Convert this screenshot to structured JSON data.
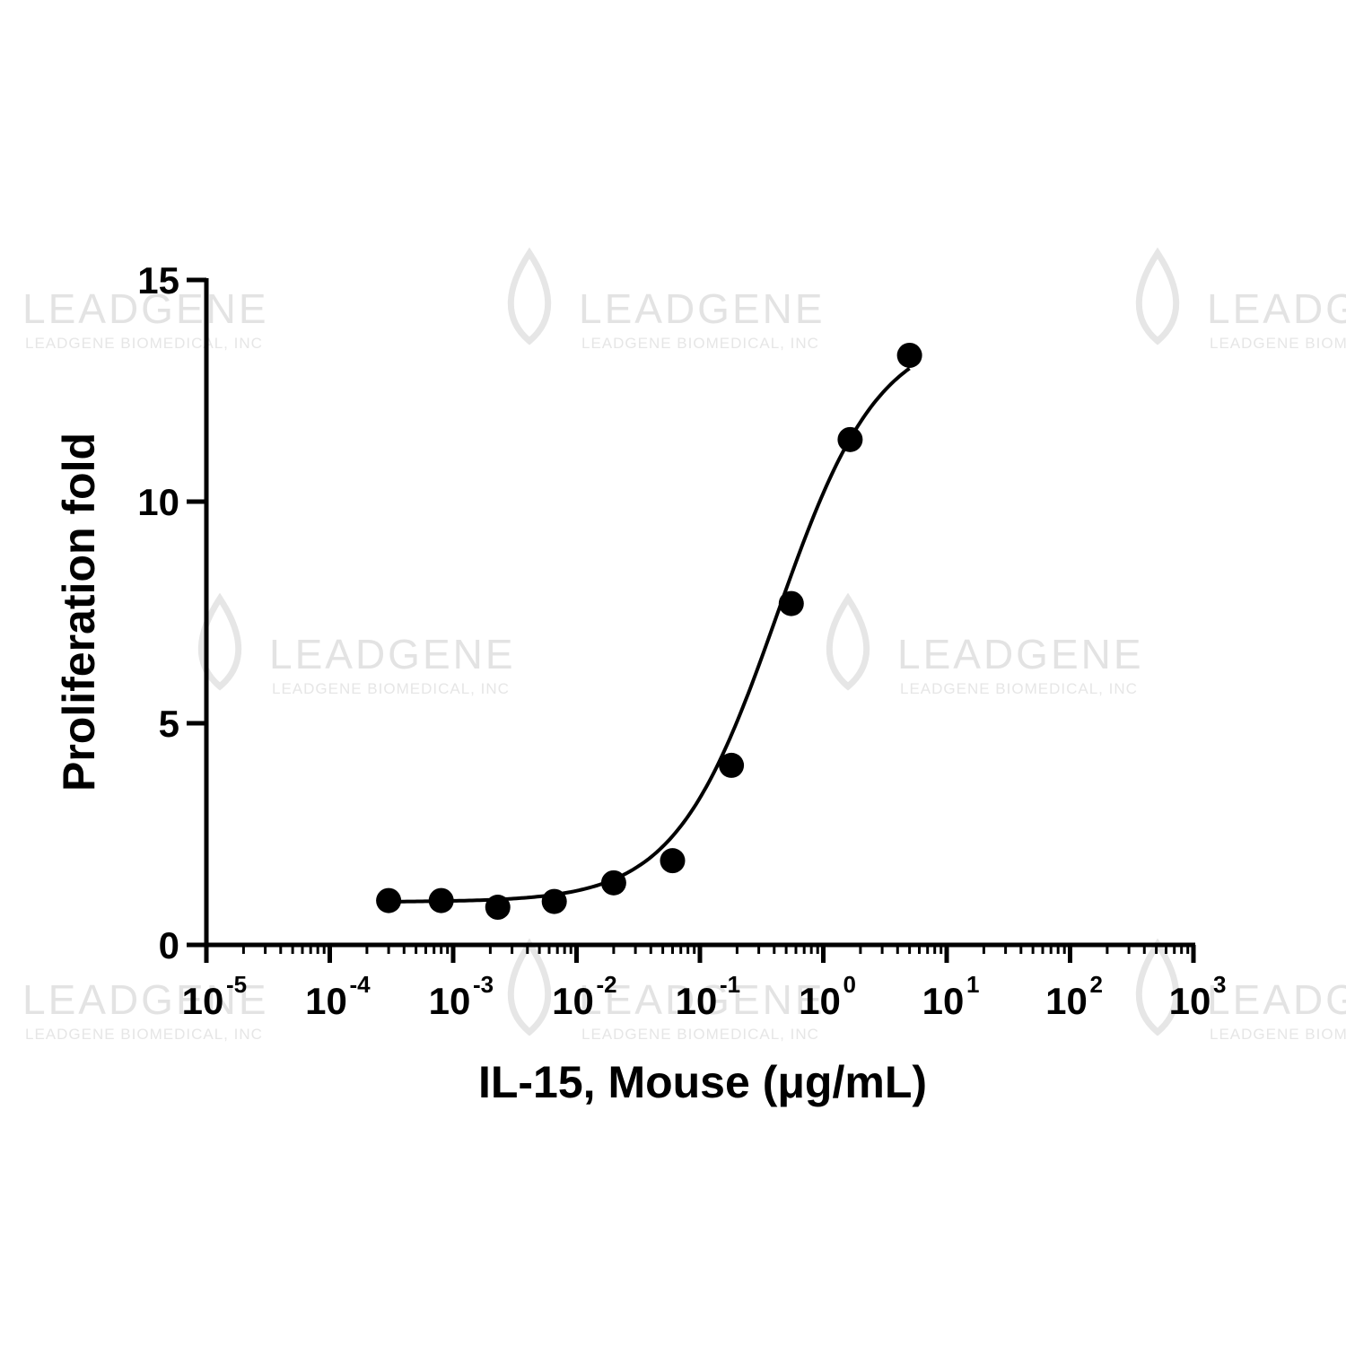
{
  "watermark": {
    "brand": "LEADGENE",
    "company": "LEADGENE BIOMEDICAL, INC",
    "color": "#e3e3e3"
  },
  "chart_data": {
    "type": "scatter",
    "xscale": "log",
    "xlim": [
      1e-05,
      1000
    ],
    "ylim": [
      0,
      15
    ],
    "xlabel": "IL-15, Mouse (μg/mL)",
    "ylabel": "Proliferation fold",
    "yticks": [
      0,
      5,
      10,
      15
    ],
    "xticks": [
      {
        "base": "10",
        "exp": "-5"
      },
      {
        "base": "10",
        "exp": "-4"
      },
      {
        "base": "10",
        "exp": "-3"
      },
      {
        "base": "10",
        "exp": "-2"
      },
      {
        "base": "10",
        "exp": "-1"
      },
      {
        "base": "10",
        "exp": "0"
      },
      {
        "base": "10",
        "exp": "1"
      },
      {
        "base": "10",
        "exp": "2"
      },
      {
        "base": "10",
        "exp": "3"
      }
    ],
    "series": [
      {
        "x": [
          0.0003,
          0.0008,
          0.0023,
          0.0066,
          0.02,
          0.06,
          0.18,
          0.55,
          1.65,
          5.0
        ],
        "y": [
          1.0,
          1.0,
          0.85,
          0.98,
          1.4,
          1.9,
          4.05,
          7.7,
          11.4,
          13.3
        ],
        "color": "#000000",
        "fit": "sigmoidal"
      }
    ]
  }
}
